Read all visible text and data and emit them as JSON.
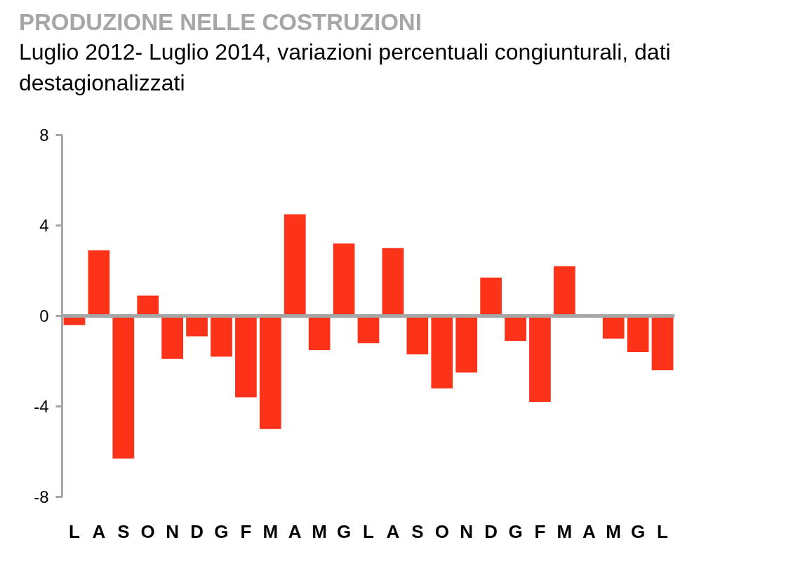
{
  "chart_data": {
    "type": "bar",
    "title": "PRODUZIONE NELLE COSTRUZIONI",
    "subtitle": "Luglio 2012- Luglio 2014, variazioni percentuali congiunturali, dati destagionalizzati",
    "categories": [
      "L",
      "A",
      "S",
      "O",
      "N",
      "D",
      "G",
      "F",
      "M",
      "A",
      "M",
      "G",
      "L",
      "A",
      "S",
      "O",
      "N",
      "D",
      "G",
      "F",
      "M",
      "A",
      "M",
      "G",
      "L"
    ],
    "values": [
      -0.4,
      2.9,
      -6.3,
      0.9,
      -1.9,
      -0.9,
      -1.8,
      -3.6,
      -5.0,
      4.5,
      -1.5,
      3.2,
      -1.2,
      3.0,
      -1.7,
      -3.2,
      -2.5,
      1.7,
      -1.1,
      -3.8,
      2.2,
      0,
      -1.0,
      -1.6,
      -2.4
    ],
    "color": "#fc3219",
    "ylim": [
      -8,
      8
    ],
    "yticks": [
      -8,
      -4,
      0,
      4,
      8
    ],
    "ref_lines": [
      {
        "axis": "y",
        "value": 0,
        "color": "#a6a6a6"
      }
    ]
  }
}
